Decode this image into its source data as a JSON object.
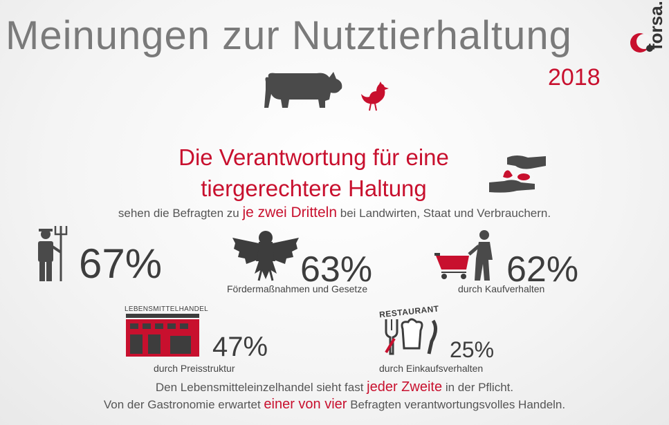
{
  "header": {
    "title": "Meinungen zur Nutztierhaltung",
    "year": "2018",
    "logo": "forsa."
  },
  "headline": {
    "line1": "Die Verantwortung für eine",
    "line2": "tiergerechtere Haltung"
  },
  "subline": {
    "pre": "sehen die Befragten zu",
    "highlight": "je zwei Dritteln",
    "post": "bei Landwirten, Staat und Verbrauchern."
  },
  "stats": [
    {
      "id": "landwirte",
      "value": "67%",
      "caption": "",
      "icon": "farmer-icon"
    },
    {
      "id": "staat",
      "value": "63%",
      "caption": "Fördermaßnahmen und Gesetze",
      "icon": "federal-eagle-icon"
    },
    {
      "id": "verbraucher",
      "value": "62%",
      "caption": "durch Kaufverhalten",
      "icon": "shopping-cart-person-icon"
    },
    {
      "id": "handel",
      "value": "47%",
      "caption": "durch Preisstruktur",
      "icon": "supermarket-icon",
      "sign": "LEBENSMITTELHANDEL"
    },
    {
      "id": "gastro",
      "value": "25%",
      "caption": "durch Einkaufsverhalten",
      "icon": "restaurant-icon",
      "sign": "RESTAURANT"
    }
  ],
  "bottom": {
    "line1_pre": "Den Lebensmitteleinzelhandel sieht fast",
    "line1_highlight": "jeder Zweite",
    "line1_post": "in der Pflicht.",
    "line2_pre": "Von der Gastronomie erwartet",
    "line2_highlight": "einer von vier",
    "line2_post": "Befragten verantwortungsvolles Handeln."
  },
  "colors": {
    "accent": "#c8102e",
    "dark": "#3d3d3d",
    "grey": "#7a7a7a"
  }
}
